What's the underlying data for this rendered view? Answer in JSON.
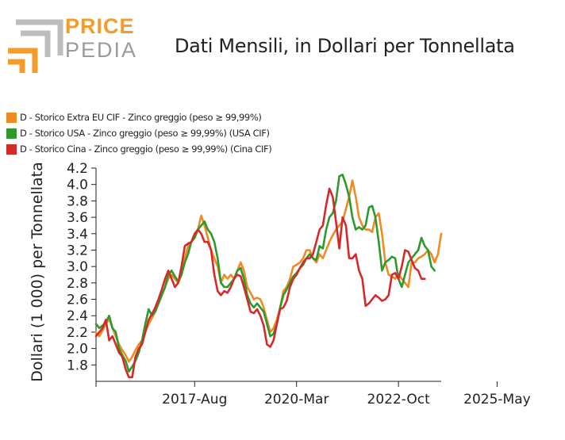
{
  "logo": {
    "word1": "PRICE",
    "word2": "PEDIA"
  },
  "colors": {
    "orange": "#f08a24",
    "green": "#2e9a2e",
    "red": "#d42a2a",
    "logo_orange": "#f39c2a",
    "logo_gray": "#9a9a9a"
  },
  "chart_data": {
    "type": "line",
    "title": "Dati Mensili, in Dollari per Tonnellata",
    "ylabel": "Dollari (1 000) per Tonnellata",
    "ylim": [
      1.6,
      4.2
    ],
    "yticks": [
      1.8,
      2.0,
      2.2,
      2.4,
      2.6,
      2.8,
      3.0,
      3.2,
      3.4,
      3.6,
      3.8,
      4.0,
      4.2
    ],
    "ytick_labels": [
      "1.8",
      "2.0",
      "2.2",
      "2.4",
      "2.6",
      "2.8",
      "3.0",
      "3.2",
      "3.4",
      "3.6",
      "3.8",
      "4.0",
      "4.2"
    ],
    "xtick_labels": [
      "2017-Aug",
      "2020-Mar",
      "2022-Oct",
      "2025-May"
    ],
    "xtick_index": [
      30,
      61,
      92,
      122
    ],
    "x_start": "2015-02",
    "x_end": "2025-05",
    "legend_position": "top-left",
    "series": [
      {
        "name": "D - Storico Extra EU CIF - Zinco greggio (peso ≥ 99,99%)",
        "color": "#f08a24",
        "values": [
          2.2,
          2.15,
          2.22,
          2.3,
          2.36,
          2.25,
          2.15,
          2.05,
          1.98,
          1.92,
          1.84,
          1.9,
          1.98,
          2.05,
          2.1,
          2.2,
          2.3,
          2.37,
          2.45,
          2.55,
          2.65,
          2.75,
          2.85,
          2.9,
          2.85,
          2.8,
          2.9,
          3.1,
          3.25,
          3.3,
          3.35,
          3.45,
          3.62,
          3.5,
          3.35,
          3.2,
          3.1,
          3.0,
          2.8,
          2.9,
          2.85,
          2.9,
          2.85,
          2.95,
          3.05,
          2.95,
          2.75,
          2.68,
          2.6,
          2.62,
          2.6,
          2.5,
          2.35,
          2.2,
          2.25,
          2.35,
          2.5,
          2.7,
          2.75,
          2.85,
          3.0,
          3.02,
          3.05,
          3.1,
          3.2,
          3.2,
          3.1,
          3.05,
          3.15,
          3.1,
          3.2,
          3.3,
          3.38,
          3.45,
          3.5,
          3.55,
          3.7,
          3.85,
          4.05,
          3.85,
          3.6,
          3.5,
          3.45,
          3.45,
          3.42,
          3.6,
          3.65,
          3.4,
          3.05,
          2.9,
          2.88,
          2.85,
          2.9,
          2.85,
          2.8,
          2.75,
          3.05,
          3.05,
          3.1,
          3.12,
          3.15,
          3.2,
          3.15,
          3.05,
          3.15,
          3.4
        ]
      },
      {
        "name": "D - Storico USA - Zinco greggio (peso ≥ 99,99%) (USA CIF)",
        "color": "#2e9a2e",
        "values": [
          2.3,
          2.25,
          2.28,
          2.32,
          2.4,
          2.25,
          2.2,
          2.0,
          1.92,
          1.85,
          1.72,
          1.78,
          1.85,
          1.95,
          2.1,
          2.3,
          2.48,
          2.4,
          2.45,
          2.55,
          2.65,
          2.75,
          2.9,
          2.95,
          2.88,
          2.82,
          2.9,
          3.05,
          3.15,
          3.3,
          3.35,
          3.45,
          3.5,
          3.55,
          3.45,
          3.4,
          3.3,
          3.1,
          2.8,
          2.75,
          2.75,
          2.8,
          2.85,
          2.95,
          2.98,
          2.85,
          2.65,
          2.55,
          2.5,
          2.55,
          2.5,
          2.45,
          2.3,
          2.15,
          2.18,
          2.3,
          2.5,
          2.65,
          2.72,
          2.8,
          2.88,
          2.92,
          2.98,
          3.02,
          3.1,
          3.15,
          3.1,
          3.08,
          3.25,
          3.22,
          3.45,
          3.6,
          3.65,
          3.8,
          4.1,
          4.12,
          4.0,
          3.85,
          3.6,
          3.45,
          3.48,
          3.45,
          3.5,
          3.72,
          3.74,
          3.6,
          3.3,
          2.95,
          3.05,
          3.08,
          3.12,
          3.1,
          2.85,
          2.75,
          2.9,
          3.05,
          3.1,
          3.15,
          3.2,
          3.35,
          3.25,
          3.2,
          3.0,
          2.95
        ]
      },
      {
        "name": "D - Storico Cina - Zinco greggio (peso ≥ 99,99%) (Cina CIF)",
        "color": "#d42a2a",
        "values": [
          2.15,
          2.2,
          2.25,
          2.35,
          2.1,
          2.15,
          2.05,
          1.95,
          1.9,
          1.75,
          1.65,
          1.65,
          1.9,
          2.0,
          2.05,
          2.2,
          2.35,
          2.42,
          2.5,
          2.6,
          2.72,
          2.85,
          2.95,
          2.85,
          2.75,
          2.8,
          3.0,
          3.25,
          3.28,
          3.3,
          3.4,
          3.45,
          3.4,
          3.3,
          3.3,
          3.2,
          2.9,
          2.7,
          2.65,
          2.7,
          2.68,
          2.75,
          2.85,
          2.9,
          2.88,
          2.75,
          2.6,
          2.45,
          2.43,
          2.48,
          2.4,
          2.28,
          2.05,
          2.02,
          2.1,
          2.3,
          2.48,
          2.5,
          2.58,
          2.75,
          2.85,
          2.9,
          2.98,
          3.05,
          3.1,
          3.1,
          3.15,
          3.3,
          3.45,
          3.5,
          3.75,
          3.95,
          3.85,
          3.55,
          3.22,
          3.6,
          3.5,
          3.1,
          3.1,
          3.15,
          2.95,
          2.85,
          2.52,
          2.55,
          2.6,
          2.65,
          2.62,
          2.58,
          2.6,
          2.65,
          2.9,
          2.92,
          2.85,
          3.0,
          3.2,
          3.18,
          3.08,
          2.98,
          2.95,
          2.85,
          2.85
        ]
      }
    ]
  }
}
